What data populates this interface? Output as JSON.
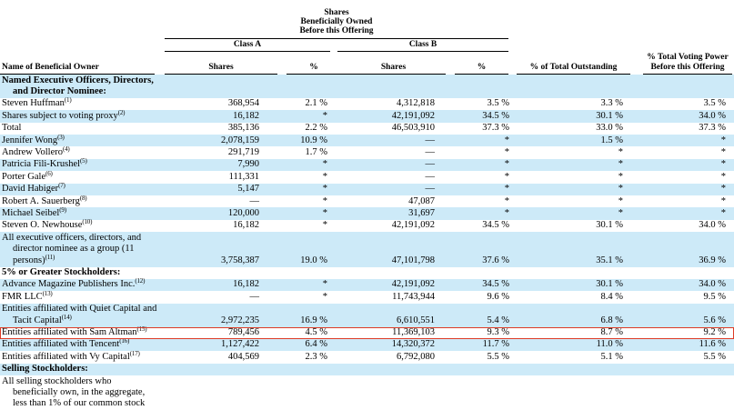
{
  "header": {
    "title_lines": [
      "Shares",
      "Beneficially Owned",
      "Before this Offering"
    ],
    "class_a_label": "Class A",
    "class_b_label": "Class B",
    "name_col_label": "Name of Beneficial Owner",
    "shares_label": "Shares",
    "pct_label": "%",
    "total_outstanding_label": "% of Total Outstanding",
    "voting_power_lines": [
      "% Total Voting Power",
      "Before this Offering"
    ]
  },
  "colors": {
    "row_shade": "#cdeaf8",
    "highlight_border": "#de3b26"
  },
  "rows": [
    {
      "type": "section",
      "shaded": true,
      "highlighted": false,
      "name": "Named Executive Officers, Directors, and Director Nominee:",
      "footnote": "",
      "a_shares": "",
      "a_pct": "",
      "b_shares": "",
      "b_pct": "",
      "total_pct": "",
      "voting_pct": ""
    },
    {
      "type": "data",
      "shaded": false,
      "highlighted": false,
      "name": "Steven Huffman",
      "footnote": "(1)",
      "a_shares": "368,954",
      "a_pct": "2.1 %",
      "b_shares": "4,312,818",
      "b_pct": "3.5 %",
      "total_pct": "3.3 %",
      "voting_pct": "3.5 %"
    },
    {
      "type": "data",
      "shaded": true,
      "highlighted": false,
      "name": "Shares subject to voting proxy",
      "footnote": "(2)",
      "a_shares": "16,182",
      "a_pct": "*",
      "b_shares": "42,191,092",
      "b_pct": "34.5 %",
      "total_pct": "30.1 %",
      "voting_pct": "34.0 %"
    },
    {
      "type": "data",
      "shaded": false,
      "highlighted": false,
      "name": "Total",
      "footnote": "",
      "a_shares": "385,136",
      "a_pct": "2.2 %",
      "b_shares": "46,503,910",
      "b_pct": "37.3 %",
      "total_pct": "33.0 %",
      "voting_pct": "37.3 %"
    },
    {
      "type": "data",
      "shaded": true,
      "highlighted": false,
      "name": "Jennifer Wong",
      "footnote": "(3)",
      "a_shares": "2,078,159",
      "a_pct": "10.9 %",
      "b_shares": "—",
      "b_pct": "*",
      "total_pct": "1.5 %",
      "voting_pct": "*"
    },
    {
      "type": "data",
      "shaded": false,
      "highlighted": false,
      "name": "Andrew Vollero",
      "footnote": "(4)",
      "a_shares": "291,719",
      "a_pct": "1.7 %",
      "b_shares": "—",
      "b_pct": "*",
      "total_pct": "*",
      "voting_pct": "*"
    },
    {
      "type": "data",
      "shaded": true,
      "highlighted": false,
      "name": "Patricia Fili-Krushel",
      "footnote": "(5)",
      "a_shares": "7,990",
      "a_pct": "*",
      "b_shares": "—",
      "b_pct": "*",
      "total_pct": "*",
      "voting_pct": "*"
    },
    {
      "type": "data",
      "shaded": false,
      "highlighted": false,
      "name": "Porter Gale",
      "footnote": "(6)",
      "a_shares": "111,331",
      "a_pct": "*",
      "b_shares": "—",
      "b_pct": "*",
      "total_pct": "*",
      "voting_pct": "*"
    },
    {
      "type": "data",
      "shaded": true,
      "highlighted": false,
      "name": "David Habiger",
      "footnote": "(7)",
      "a_shares": "5,147",
      "a_pct": "*",
      "b_shares": "—",
      "b_pct": "*",
      "total_pct": "*",
      "voting_pct": "*"
    },
    {
      "type": "data",
      "shaded": false,
      "highlighted": false,
      "name": "Robert A. Sauerberg",
      "footnote": "(8)",
      "a_shares": "—",
      "a_pct": "*",
      "b_shares": "47,087",
      "b_pct": "*",
      "total_pct": "*",
      "voting_pct": "*"
    },
    {
      "type": "data",
      "shaded": true,
      "highlighted": false,
      "name": "Michael Seibel",
      "footnote": "(9)",
      "a_shares": "120,000",
      "a_pct": "*",
      "b_shares": "31,697",
      "b_pct": "*",
      "total_pct": "*",
      "voting_pct": "*"
    },
    {
      "type": "data",
      "shaded": false,
      "highlighted": false,
      "name": "Steven O. Newhouse",
      "footnote": "(10)",
      "a_shares": "16,182",
      "a_pct": "*",
      "b_shares": "42,191,092",
      "b_pct": "34.5 %",
      "total_pct": "30.1 %",
      "voting_pct": "34.0 %"
    },
    {
      "type": "data",
      "shaded": true,
      "highlighted": false,
      "name": "All executive officers, directors, and director nominee as a group (11 persons)",
      "footnote": "(11)",
      "a_shares": "3,758,387",
      "a_pct": "19.0 %",
      "b_shares": "47,101,798",
      "b_pct": "37.6 %",
      "total_pct": "35.1 %",
      "voting_pct": "36.9 %"
    },
    {
      "type": "section",
      "shaded": false,
      "highlighted": false,
      "name": "5% or Greater Stockholders:",
      "footnote": "",
      "a_shares": "",
      "a_pct": "",
      "b_shares": "",
      "b_pct": "",
      "total_pct": "",
      "voting_pct": ""
    },
    {
      "type": "data",
      "shaded": true,
      "highlighted": false,
      "name": "Advance Magazine Publishers Inc.",
      "footnote": "(12)",
      "a_shares": "16,182",
      "a_pct": "*",
      "b_shares": "42,191,092",
      "b_pct": "34.5 %",
      "total_pct": "30.1 %",
      "voting_pct": "34.0 %"
    },
    {
      "type": "data",
      "shaded": false,
      "highlighted": false,
      "name": "FMR LLC",
      "footnote": "(13)",
      "a_shares": "—",
      "a_pct": "*",
      "b_shares": "11,743,944",
      "b_pct": "9.6 %",
      "total_pct": "8.4 %",
      "voting_pct": "9.5 %"
    },
    {
      "type": "data",
      "shaded": true,
      "highlighted": false,
      "name": "Entities affiliated with Quiet Capital and Tacit Capital",
      "footnote": "(14)",
      "a_shares": "2,972,235",
      "a_pct": "16.9 %",
      "b_shares": "6,610,551",
      "b_pct": "5.4 %",
      "total_pct": "6.8 %",
      "voting_pct": "5.6 %"
    },
    {
      "type": "data",
      "shaded": false,
      "highlighted": true,
      "name": "Entities affiliated with Sam Altman",
      "footnote": "(15)",
      "a_shares": "789,456",
      "a_pct": "4.5 %",
      "b_shares": "11,369,103",
      "b_pct": "9.3 %",
      "total_pct": "8.7 %",
      "voting_pct": "9.2 %"
    },
    {
      "type": "data",
      "shaded": true,
      "highlighted": false,
      "name": "Entities affiliated with Tencent",
      "footnote": "(16)",
      "a_shares": "1,127,422",
      "a_pct": "6.4 %",
      "b_shares": "14,320,372",
      "b_pct": "11.7 %",
      "total_pct": "11.0 %",
      "voting_pct": "11.6 %"
    },
    {
      "type": "data",
      "shaded": false,
      "highlighted": false,
      "name": "Entities affiliated with Vy Capital",
      "footnote": "(17)",
      "a_shares": "404,569",
      "a_pct": "2.3 %",
      "b_shares": "6,792,080",
      "b_pct": "5.5 %",
      "total_pct": "5.1 %",
      "voting_pct": "5.5 %"
    },
    {
      "type": "section",
      "shaded": true,
      "highlighted": false,
      "name": "Selling Stockholders:",
      "footnote": "",
      "a_shares": "",
      "a_pct": "",
      "b_shares": "",
      "b_pct": "",
      "total_pct": "",
      "voting_pct": ""
    },
    {
      "type": "data",
      "shaded": false,
      "highlighted": false,
      "name": "All selling stockholders who beneficially own, in the aggregate, less than 1% of our common stock",
      "footnote": "",
      "a_shares": "",
      "a_pct": "",
      "b_shares": "",
      "b_pct": "",
      "total_pct": "",
      "voting_pct": ""
    }
  ]
}
